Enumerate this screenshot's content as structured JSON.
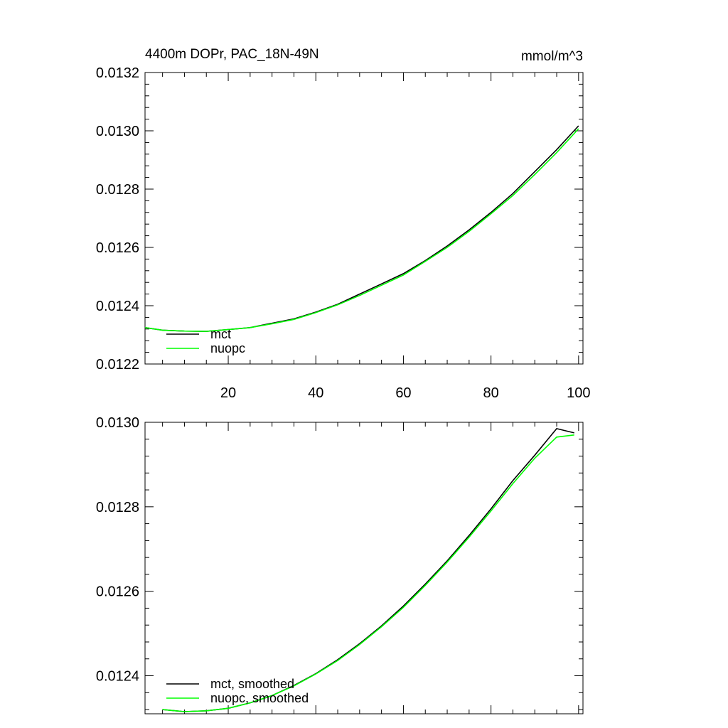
{
  "chart_data": [
    {
      "type": "line",
      "title": "4400m DOPr, PAC_18N-49N",
      "units": "mmol/m^3",
      "xlim": [
        1,
        101
      ],
      "ylim": [
        0.0122,
        0.0132
      ],
      "x_ticks": [
        20,
        40,
        60,
        80,
        100
      ],
      "x_tick_labels": [
        "20",
        "40",
        "60",
        "80",
        "100"
      ],
      "y_ticks": [
        0.0122,
        0.0124,
        0.0126,
        0.0128,
        0.013,
        0.0132
      ],
      "y_tick_labels": [
        "0.0122",
        "0.0124",
        "0.0126",
        "0.0128",
        "0.0130",
        "0.0132"
      ],
      "legend_position": "bottom-left",
      "x": [
        1,
        5,
        10,
        15,
        20,
        25,
        30,
        35,
        40,
        45,
        50,
        55,
        60,
        65,
        70,
        75,
        80,
        85,
        90,
        95,
        100
      ],
      "series": [
        {
          "name": "mct",
          "color": "#000000",
          "values": [
            0.012325,
            0.012316,
            0.012313,
            0.012312,
            0.012318,
            0.012325,
            0.01234,
            0.012355,
            0.012378,
            0.012405,
            0.01244,
            0.012475,
            0.01251,
            0.012555,
            0.012605,
            0.01266,
            0.01272,
            0.012785,
            0.01286,
            0.012935,
            0.013017
          ]
        },
        {
          "name": "nuopc",
          "color": "#00ff00",
          "values": [
            0.012325,
            0.012316,
            0.012313,
            0.012312,
            0.012318,
            0.012325,
            0.012338,
            0.012353,
            0.012376,
            0.012403,
            0.012435,
            0.01247,
            0.012505,
            0.012552,
            0.0126,
            0.012655,
            0.012715,
            0.012778,
            0.01285,
            0.012925,
            0.013007
          ]
        }
      ]
    },
    {
      "type": "line",
      "xlim": [
        1,
        101
      ],
      "ylim": [
        0.01231,
        0.013
      ],
      "y_ticks": [
        0.0124,
        0.0126,
        0.0128,
        0.013
      ],
      "y_tick_labels": [
        "0.0124",
        "0.0126",
        "0.0128",
        "0.0130"
      ],
      "legend_position": "bottom-left",
      "x": [
        5,
        10,
        15,
        20,
        25,
        30,
        35,
        40,
        45,
        50,
        55,
        60,
        65,
        70,
        75,
        80,
        85,
        90,
        95,
        99
      ],
      "series": [
        {
          "name": "mct, smoothed",
          "color": "#000000",
          "values": [
            0.01232,
            0.012315,
            0.012317,
            0.012323,
            0.012336,
            0.012353,
            0.012377,
            0.012405,
            0.012438,
            0.012476,
            0.012518,
            0.012565,
            0.012617,
            0.012672,
            0.012732,
            0.012795,
            0.012862,
            0.012922,
            0.012985,
            0.012975
          ]
        },
        {
          "name": "nuopc, smoothed",
          "color": "#00ff00",
          "values": [
            0.01232,
            0.012315,
            0.012317,
            0.012323,
            0.012336,
            0.012353,
            0.012376,
            0.012404,
            0.012436,
            0.012474,
            0.012516,
            0.012562,
            0.012614,
            0.012669,
            0.012728,
            0.01279,
            0.012855,
            0.012915,
            0.012965,
            0.01297
          ]
        }
      ]
    }
  ]
}
